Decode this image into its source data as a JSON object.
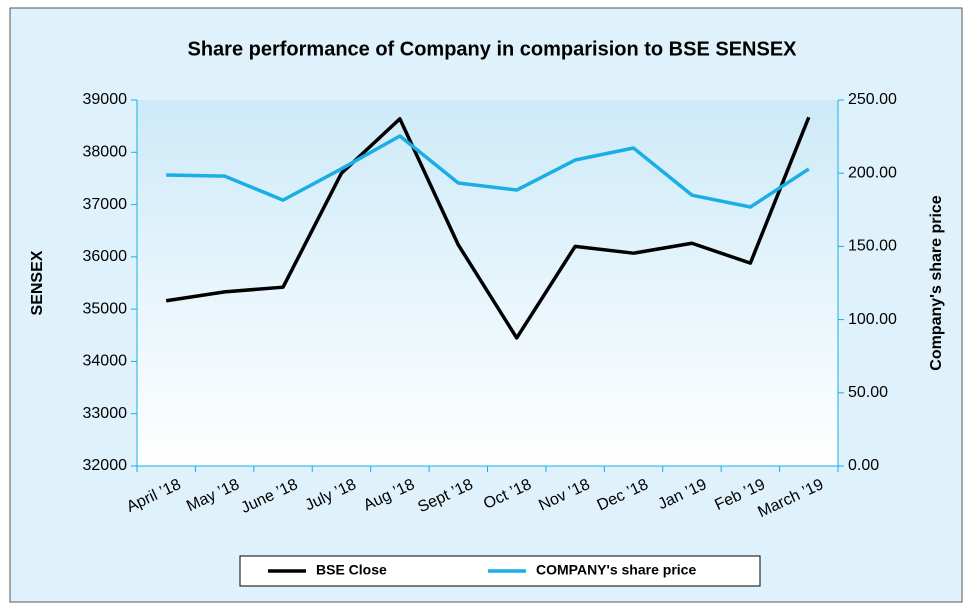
{
  "chart_data": {
    "type": "line",
    "title": "Share performance of Company in comparision to BSE SENSEX",
    "categories": [
      "April ’18",
      "May ’18",
      "June ’18",
      "July ’18",
      "Aug ’18",
      "Sept ’18",
      "Oct ’18",
      "Nov ’18",
      "Dec ’18",
      "Jan ’19",
      "Feb ’19",
      "March ’19"
    ],
    "y_label": "SENSEX",
    "y2_label": "Company's share price",
    "ylim": [
      32000,
      39000
    ],
    "yticks": [
      32000,
      33000,
      34000,
      35000,
      36000,
      37000,
      38000,
      39000
    ],
    "y2lim": [
      0,
      250
    ],
    "y2ticks": [
      {
        "value": 0,
        "label": "0.00"
      },
      {
        "value": 50,
        "label": "50.00"
      },
      {
        "value": 100,
        "label": "100.00"
      },
      {
        "value": 150,
        "label": "150.00"
      },
      {
        "value": 200,
        "label": "200.00"
      },
      {
        "value": 250,
        "label": "250.00"
      }
    ],
    "legend": "bottom",
    "series": [
      {
        "name": "BSE Close",
        "color": "#000000",
        "axis": "y",
        "values": [
          35160,
          35330,
          35420,
          37600,
          38640,
          36230,
          34450,
          36200,
          36070,
          36260,
          35880,
          38670
        ]
      },
      {
        "name": "COMPANY's share price",
        "color": "#1aaee5",
        "axis": "y2",
        "values": [
          198.8,
          198.0,
          181.6,
          203.0,
          225.4,
          193.3,
          188.5,
          209.0,
          217.2,
          185.0,
          176.9,
          202.9
        ]
      }
    ]
  }
}
